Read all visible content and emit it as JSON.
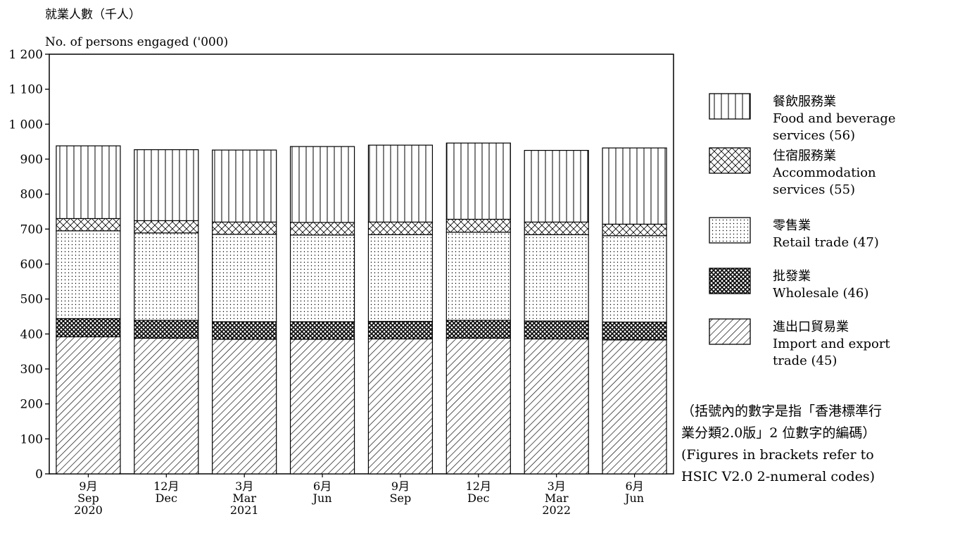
{
  "chart_data": {
    "type": "bar",
    "stacked": true,
    "ylabel": [
      "就業人數（千人）",
      "No. of persons engaged ('000)"
    ],
    "ylim": [
      0,
      1200
    ],
    "yticks": [
      0,
      100,
      200,
      300,
      400,
      500,
      600,
      700,
      800,
      900,
      1000,
      1100,
      1200
    ],
    "ytick_labels": [
      "0",
      "100",
      "200",
      "300",
      "400",
      "500",
      "600",
      "700",
      "800",
      "900",
      "1 000",
      "1 100",
      "1 200"
    ],
    "categories": [
      {
        "zh": "9月",
        "en": "Sep",
        "year": "2020"
      },
      {
        "zh": "12月",
        "en": "Dec",
        "year": ""
      },
      {
        "zh": "3月",
        "en": "Mar",
        "year": "2021"
      },
      {
        "zh": "6月",
        "en": "Jun",
        "year": ""
      },
      {
        "zh": "9月",
        "en": "Sep",
        "year": ""
      },
      {
        "zh": "12月",
        "en": "Dec",
        "year": ""
      },
      {
        "zh": "3月",
        "en": "Mar",
        "year": "2022"
      },
      {
        "zh": "6月",
        "en": "Jun",
        "year": ""
      }
    ],
    "series": [
      {
        "key": "import_export",
        "name_zh": "進出口貿易業",
        "name_en": [
          "Import and export",
          "trade (45)"
        ],
        "pattern": "diagonal-hatch",
        "values": [
          392,
          388,
          385,
          385,
          386,
          388,
          386,
          383
        ]
      },
      {
        "key": "wholesale",
        "name_zh": "批發業",
        "name_en": [
          "Wholesale (46)"
        ],
        "pattern": "dense-crosshatch",
        "values": [
          52,
          51,
          50,
          50,
          50,
          51,
          51,
          51
        ]
      },
      {
        "key": "retail",
        "name_zh": "零售業",
        "name_en": [
          "Retail trade (47)"
        ],
        "pattern": "dots",
        "values": [
          251,
          250,
          250,
          248,
          248,
          252,
          247,
          247
        ]
      },
      {
        "key": "accommodation",
        "name_zh": "住宿服務業",
        "name_en": [
          "Accommodation",
          "services (55)"
        ],
        "pattern": "crosshatch",
        "values": [
          35,
          35,
          35,
          36,
          36,
          37,
          36,
          33
        ]
      },
      {
        "key": "food_beverage",
        "name_zh": "餐飲服務業",
        "name_en": [
          "Food and beverage",
          "services (56)"
        ],
        "pattern": "vertical-lines",
        "values": [
          208,
          203,
          206,
          217,
          220,
          218,
          205,
          218
        ]
      }
    ],
    "legend_position": "right",
    "grid": false,
    "note": [
      "（括號內的數字是指「香港標準行",
      "業分類2.0版」2 位數字的編碼）",
      "(Figures in brackets refer to",
      "HSIC V2.0 2-numeral codes)"
    ]
  }
}
